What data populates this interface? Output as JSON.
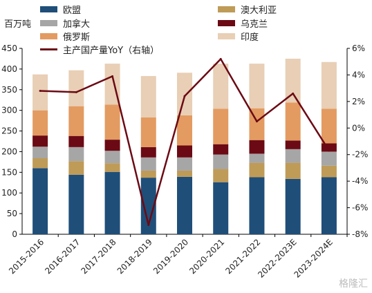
{
  "unit_label": "百万吨",
  "watermark": "格隆汇",
  "colors": {
    "eu": "#1F4E79",
    "australia": "#BF9B58",
    "canada": "#A6A6A6",
    "ukraine": "#6B0A14",
    "russia": "#E39B61",
    "india": "#E8CFB5",
    "yoy": "#6B0A14"
  },
  "legend": {
    "eu": "欧盟",
    "australia": "澳大利亚",
    "canada": "加拿大",
    "ukraine": "乌克兰",
    "russia": "俄罗斯",
    "india": "印度",
    "yoy": "主产国产量YoY（右轴）"
  },
  "chart_data": {
    "type": "bar",
    "stacked": true,
    "categories": [
      "2015-2016",
      "2016-2017",
      "2017-2018",
      "2018-2019",
      "2019-2020",
      "2020-2021",
      "2021-2022",
      "2022-2023E",
      "2023-2024E"
    ],
    "series": [
      {
        "name": "欧盟",
        "key": "eu",
        "values": [
          160,
          144,
          151,
          137,
          139,
          126,
          138,
          134,
          138
        ]
      },
      {
        "name": "澳大利亚",
        "key": "australia",
        "values": [
          24,
          33,
          21,
          17,
          15,
          32,
          35,
          39,
          28
        ]
      },
      {
        "name": "加拿大",
        "key": "canada",
        "values": [
          28,
          34,
          30,
          32,
          32,
          35,
          22,
          33,
          34
        ]
      },
      {
        "name": "乌克兰",
        "key": "ukraine",
        "values": [
          27,
          27,
          27,
          25,
          29,
          25,
          33,
          21,
          20
        ]
      },
      {
        "name": "俄罗斯",
        "key": "russia",
        "values": [
          61,
          72,
          85,
          72,
          73,
          86,
          77,
          92,
          84
        ]
      },
      {
        "name": "印度",
        "key": "india",
        "values": [
          87,
          87,
          99,
          100,
          103,
          109,
          108,
          106,
          113
        ]
      }
    ],
    "line": {
      "name": "主产国产量YoY（右轴）",
      "key": "yoy",
      "axis": "right",
      "values": [
        2.8,
        2.7,
        3.9,
        -7.3,
        2.4,
        5.2,
        0.5,
        2.6,
        -1.7
      ]
    },
    "y_left": {
      "min": 0,
      "max": 450,
      "ticks": [
        0,
        50,
        100,
        150,
        200,
        250,
        300,
        350,
        400,
        450
      ]
    },
    "y_right": {
      "min": -8,
      "max": 6,
      "ticks": [
        -8,
        -6,
        -4,
        -2,
        0,
        2,
        4,
        6
      ],
      "tick_labels": [
        "-8%",
        "-6%",
        "-4%",
        "-2%",
        "0%",
        "2%",
        "4%",
        "6%"
      ]
    },
    "grid": false,
    "legend_position": "top"
  }
}
